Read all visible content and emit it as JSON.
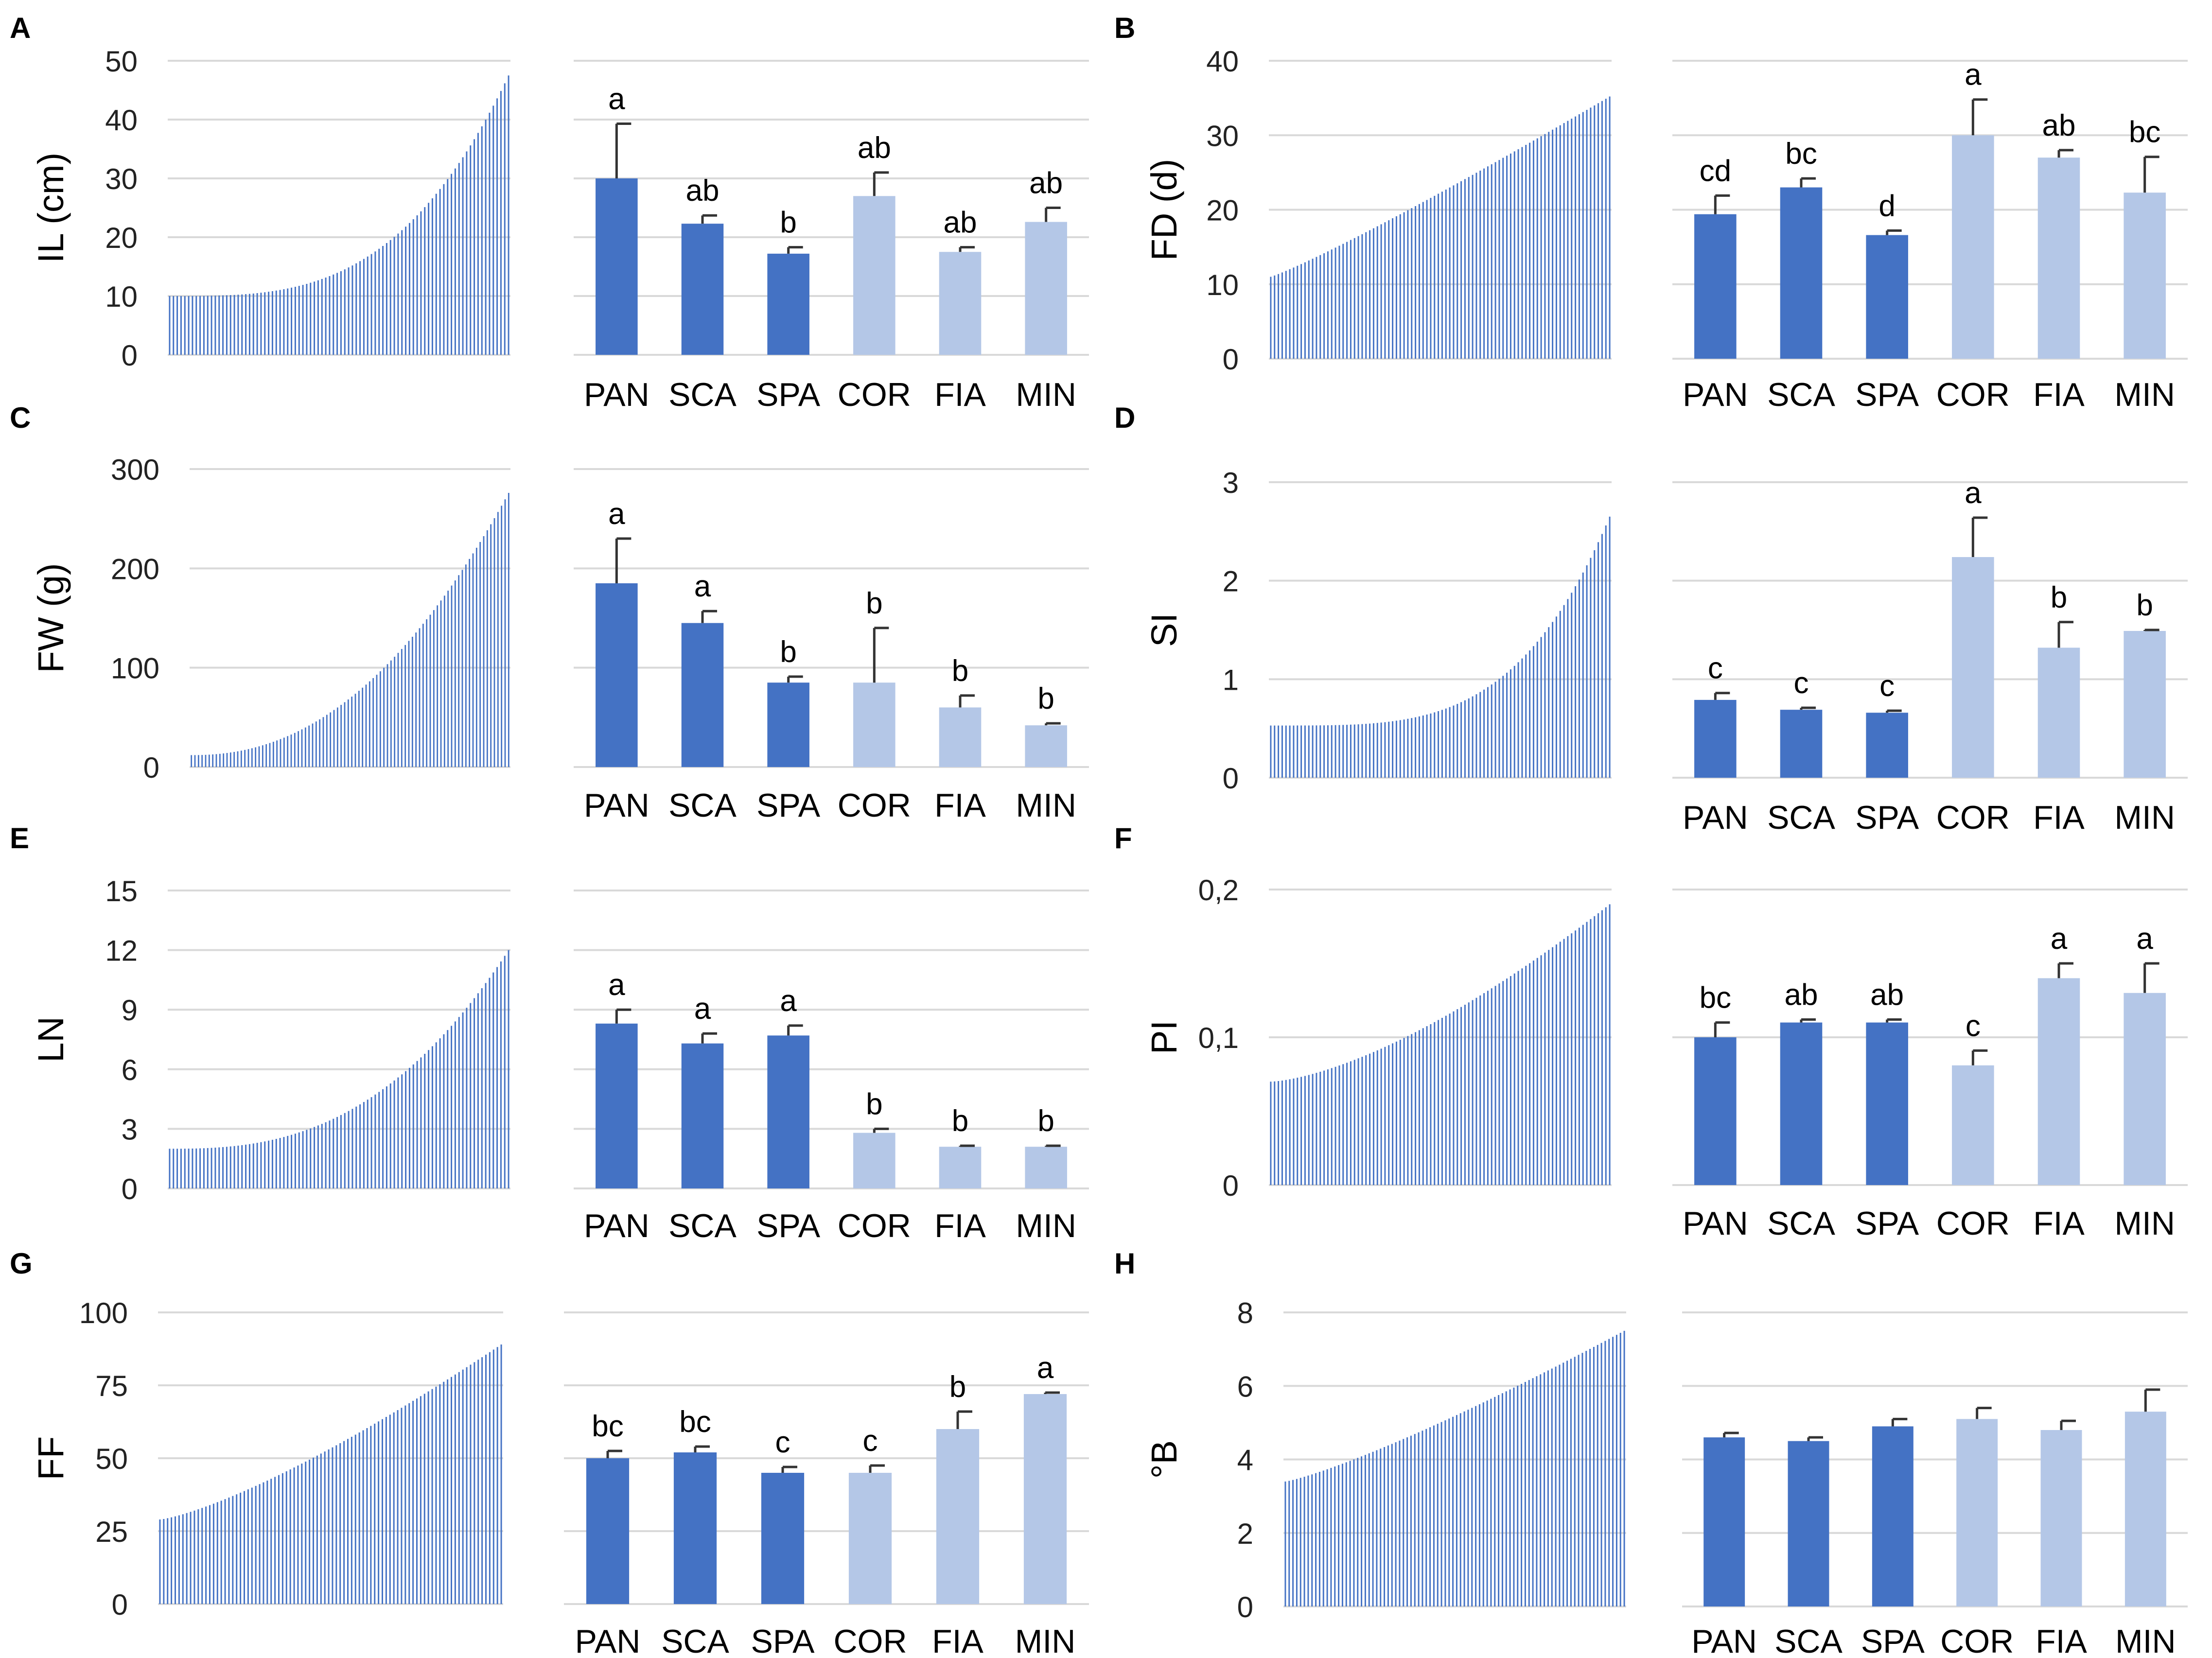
{
  "chart_data": [
    {
      "panel": "A",
      "ylabel": "IL (cm)",
      "type": "bar",
      "yticks": [
        "0",
        "10",
        "20",
        "30",
        "40",
        "50"
      ],
      "ylim": [
        0,
        50
      ],
      "categories": [
        "PAN",
        "SCA",
        "SPA",
        "COR",
        "FIA",
        "MIN"
      ],
      "means": [
        30.0,
        22.3,
        17.2,
        27.0,
        17.5,
        22.6
      ],
      "errors": [
        9.3,
        1.4,
        1.1,
        4.0,
        0.8,
        2.4
      ],
      "letters": [
        "a",
        "ab",
        "b",
        "ab",
        "ab",
        "ab"
      ],
      "dist_min": 10,
      "dist_max": 47.5,
      "dist_count": 90,
      "dist_curve": 3.2
    },
    {
      "panel": "B",
      "ylabel": "FD (d)",
      "type": "bar",
      "yticks": [
        "0",
        "10",
        "20",
        "30",
        "40"
      ],
      "ylim": [
        0,
        40
      ],
      "categories": [
        "PAN",
        "SCA",
        "SPA",
        "COR",
        "FIA",
        "MIN"
      ],
      "means": [
        19.4,
        23.0,
        16.6,
        30.0,
        27.0,
        22.3
      ],
      "errors": [
        2.5,
        1.2,
        0.6,
        4.8,
        1.0,
        4.8
      ],
      "letters": [
        "cd",
        "bc",
        "d",
        "a",
        "ab",
        "bc"
      ],
      "dist_min": 11,
      "dist_max": 35.2,
      "dist_count": 90,
      "dist_curve": 1.1
    },
    {
      "panel": "C",
      "ylabel": "FW (g)",
      "type": "bar",
      "yticks": [
        "0",
        "100",
        "200",
        "300"
      ],
      "ylim": [
        0,
        300
      ],
      "categories": [
        "PAN",
        "SCA",
        "SPA",
        "COR",
        "FIA",
        "MIN"
      ],
      "means": [
        185,
        145,
        85,
        85,
        60,
        42
      ],
      "errors": [
        45,
        12,
        6,
        55,
        12,
        2
      ],
      "letters": [
        "a",
        "a",
        "b",
        "b",
        "b",
        "b"
      ],
      "dist_min": 12,
      "dist_max": 276,
      "dist_count": 90,
      "dist_curve": 2.2
    },
    {
      "panel": "D",
      "ylabel": "SI",
      "type": "bar",
      "yticks": [
        "0",
        "1",
        "2",
        "3"
      ],
      "ylim": [
        0,
        3
      ],
      "categories": [
        "PAN",
        "SCA",
        "SPA",
        "COR",
        "FIA",
        "MIN"
      ],
      "means": [
        0.79,
        0.69,
        0.66,
        2.24,
        1.32,
        1.49
      ],
      "errors": [
        0.07,
        0.02,
        0.02,
        0.4,
        0.26,
        0.01
      ],
      "letters": [
        "c",
        "c",
        "c",
        "a",
        "b",
        "b"
      ],
      "dist_min": 0.53,
      "dist_max": 2.65,
      "dist_count": 90,
      "dist_curve": 3.8
    },
    {
      "panel": "E",
      "ylabel": "LN",
      "type": "bar",
      "yticks": [
        "0",
        "3",
        "6",
        "9",
        "12",
        "15"
      ],
      "ylim": [
        0,
        15
      ],
      "categories": [
        "PAN",
        "SCA",
        "SPA",
        "COR",
        "FIA",
        "MIN"
      ],
      "means": [
        8.3,
        7.3,
        7.7,
        2.8,
        2.1,
        2.1
      ],
      "errors": [
        0.7,
        0.5,
        0.5,
        0.2,
        0.05,
        0.05
      ],
      "letters": [
        "a",
        "a",
        "a",
        "b",
        "b",
        "b"
      ],
      "dist_min": 2,
      "dist_max": 12,
      "dist_count": 90,
      "dist_curve": 2.6
    },
    {
      "panel": "F",
      "ylabel": "PI",
      "type": "bar",
      "yticks": [
        "0",
        "0,1",
        "0,2"
      ],
      "ylim": [
        0,
        0.2
      ],
      "categories": [
        "PAN",
        "SCA",
        "SPA",
        "COR",
        "FIA",
        "MIN"
      ],
      "means": [
        0.1,
        0.11,
        0.11,
        0.081,
        0.14,
        0.13
      ],
      "errors": [
        0.01,
        0.002,
        0.002,
        0.01,
        0.01,
        0.02
      ],
      "letters": [
        "bc",
        "ab",
        "ab",
        "c",
        "a",
        "a"
      ],
      "dist_min": 0.07,
      "dist_max": 0.19,
      "dist_count": 90,
      "dist_curve": 1.5
    },
    {
      "panel": "G",
      "ylabel": "FF",
      "type": "bar",
      "yticks": [
        "0",
        "25",
        "50",
        "75",
        "100"
      ],
      "ylim": [
        0,
        100
      ],
      "categories": [
        "PAN",
        "SCA",
        "SPA",
        "COR",
        "FIA",
        "MIN"
      ],
      "means": [
        50,
        52,
        45,
        45,
        60,
        72
      ],
      "errors": [
        2.5,
        2,
        2,
        2.5,
        6,
        0.5
      ],
      "letters": [
        "bc",
        "bc",
        "c",
        "c",
        "b",
        "a"
      ],
      "dist_min": 29,
      "dist_max": 89,
      "dist_count": 90,
      "dist_curve": 1.3
    },
    {
      "panel": "H",
      "ylabel": "°B",
      "type": "bar",
      "yticks": [
        "0",
        "2",
        "4",
        "6",
        "8"
      ],
      "ylim": [
        0,
        8
      ],
      "categories": [
        "PAN",
        "SCA",
        "SPA",
        "COR",
        "FIA",
        "MIN"
      ],
      "means": [
        4.6,
        4.5,
        4.9,
        5.1,
        4.8,
        5.3
      ],
      "errors": [
        0.12,
        0.1,
        0.2,
        0.3,
        0.25,
        0.6
      ],
      "letters": [
        "",
        "",
        "",
        "",
        "",
        ""
      ],
      "dist_min": 3.4,
      "dist_max": 7.5,
      "dist_count": 90,
      "dist_curve": 1.2
    }
  ],
  "colors": {
    "dark_bar": "#4472c4",
    "light_bar": "#b4c7e7",
    "dist_bar": "#4472c4",
    "grid": "#d9d9d9",
    "text": "#000000",
    "tick_text": "#222222"
  }
}
